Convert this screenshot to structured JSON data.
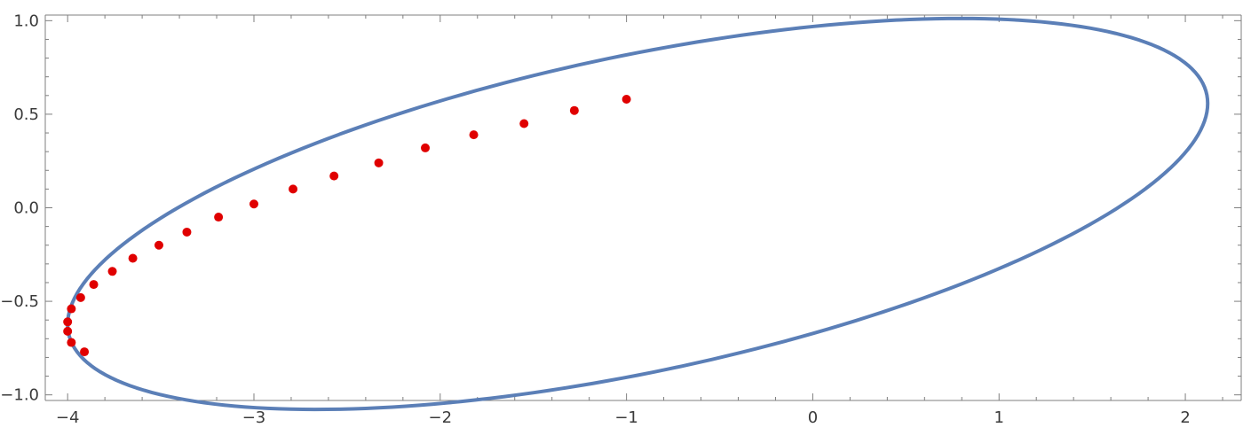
{
  "chart_data": {
    "type": "scatter",
    "title": "",
    "xlabel": "",
    "ylabel": "",
    "xlim": [
      -4.12,
      2.3
    ],
    "ylim": [
      -1.03,
      1.03
    ],
    "grid": false,
    "frame": true,
    "x_ticks": {
      "major": [
        -4,
        -3,
        -2,
        -1,
        0,
        1,
        2
      ],
      "major_labels": [
        "−4",
        "−3",
        "−2",
        "−1",
        "0",
        "1",
        "2"
      ],
      "minor_step": 0.2
    },
    "y_ticks": {
      "major": [
        -1.0,
        -0.5,
        0.0,
        0.5,
        1.0
      ],
      "major_labels": [
        "−1.0",
        "−0.5",
        "0.0",
        "0.5",
        "1.0"
      ],
      "minor_step": 0.1
    },
    "series": [
      {
        "kind": "curve",
        "shape": "ellipse",
        "color": "#5b7fb7",
        "center": [
          -0.94,
          -0.033
        ],
        "semi_axis_x": 3.06,
        "semi_axis_y": 0.862,
        "shear": 0.193
      },
      {
        "kind": "points",
        "color": "#e00000",
        "points": [
          [
            -1.0,
            0.58
          ],
          [
            -1.28,
            0.52
          ],
          [
            -1.55,
            0.45
          ],
          [
            -1.82,
            0.39
          ],
          [
            -2.08,
            0.32
          ],
          [
            -2.33,
            0.24
          ],
          [
            -2.57,
            0.17
          ],
          [
            -2.79,
            0.1
          ],
          [
            -3.0,
            0.02
          ],
          [
            -3.19,
            -0.05
          ],
          [
            -3.36,
            -0.13
          ],
          [
            -3.51,
            -0.2
          ],
          [
            -3.65,
            -0.27
          ],
          [
            -3.76,
            -0.34
          ],
          [
            -3.86,
            -0.41
          ],
          [
            -3.93,
            -0.48
          ],
          [
            -3.98,
            -0.54
          ],
          [
            -4.0,
            -0.61
          ],
          [
            -4.0,
            -0.66
          ],
          [
            -3.98,
            -0.72
          ],
          [
            -3.91,
            -0.77
          ]
        ]
      }
    ]
  }
}
